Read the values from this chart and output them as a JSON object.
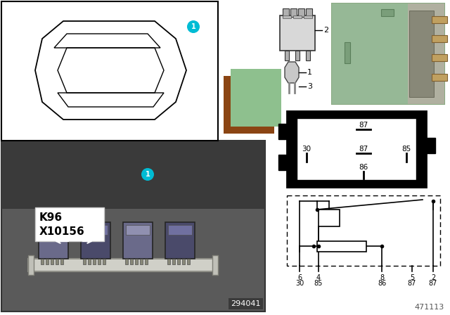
{
  "bg_color": "#ffffff",
  "circle_color": "#00bcd4",
  "circle_text_color": "#ffffff",
  "green_relay_color": "#a8c8a0",
  "green_square_color": "#8ec08e",
  "brown_square_color": "#8b4513",
  "diagram_number": "471113",
  "photo_number": "294041",
  "pin_labels_top": [
    "6",
    "4",
    "8",
    "5",
    "2"
  ],
  "pin_labels_bottom": [
    "30",
    "85",
    "86",
    "87",
    "87"
  ]
}
